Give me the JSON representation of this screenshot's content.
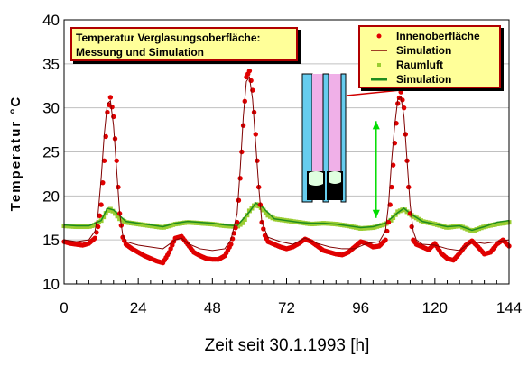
{
  "chart_data": {
    "type": "line",
    "title_lines": [
      "Temperatur Verglasungsoberfläche:",
      "Messung und Simulation"
    ],
    "xlabel": "Zeit seit 30.1.1993  [h]",
    "ylabel": "Temperatur °C",
    "xlim": [
      0,
      144
    ],
    "ylim": [
      10,
      40
    ],
    "xticks": [
      0,
      24,
      48,
      72,
      96,
      120,
      144
    ],
    "yticks": [
      10,
      15,
      20,
      25,
      30,
      35,
      40
    ],
    "grid": true,
    "legend_position": "top-right",
    "legend": [
      {
        "label": "Innenoberfläche",
        "marker": "dot",
        "color": "#e00000"
      },
      {
        "label": "Simulation",
        "marker": "line",
        "color": "#800000"
      },
      {
        "label": "Raumluft",
        "marker": "square",
        "color": "#9acd32"
      },
      {
        "label": "Simulation",
        "marker": "line",
        "color": "#1e8c1e"
      }
    ],
    "series": [
      {
        "name": "Innenoberfläche",
        "color": "#e00000",
        "x": [
          0,
          2,
          4,
          6,
          8,
          10,
          11,
          12,
          13,
          14,
          15,
          16,
          17,
          18,
          19,
          20,
          22,
          24,
          26,
          28,
          30,
          32,
          34,
          36,
          38,
          40,
          42,
          44,
          46,
          48,
          50,
          52,
          54,
          56,
          57,
          58,
          59,
          60,
          61,
          62,
          63,
          64,
          65,
          66,
          68,
          70,
          72,
          74,
          76,
          78,
          80,
          82,
          84,
          86,
          88,
          90,
          92,
          94,
          96,
          98,
          100,
          102,
          104,
          105,
          106,
          107,
          108,
          109,
          110,
          111,
          112,
          113,
          114,
          116,
          118,
          120,
          122,
          124,
          126,
          128,
          130,
          132,
          134,
          136,
          138,
          140,
          142,
          144
        ],
        "y": [
          14.8,
          14.6,
          14.5,
          14.4,
          14.6,
          15.2,
          16.5,
          19,
          24,
          29.5,
          31.2,
          29,
          24,
          18,
          15.3,
          14.5,
          14,
          13.6,
          13.2,
          12.9,
          12.6,
          12.4,
          13.6,
          15.2,
          15.4,
          14.5,
          13.6,
          13.2,
          12.9,
          12.8,
          12.8,
          13.2,
          14.5,
          17,
          22,
          28,
          33.5,
          34.2,
          32,
          27,
          21,
          17,
          15.5,
          14.8,
          14.5,
          14.2,
          14,
          14.2,
          14.6,
          15.1,
          14.8,
          14.3,
          13.8,
          13.6,
          13.4,
          13.3,
          13.6,
          14.2,
          14.8,
          14.6,
          14.2,
          14.3,
          15,
          17,
          21,
          26,
          30.5,
          31.8,
          30,
          24,
          18,
          15,
          14.5,
          14.2,
          13.9,
          14.6,
          13.5,
          12.9,
          12.7,
          13.5,
          14.4,
          14.9,
          14.2,
          13.4,
          13.6,
          14.5,
          15,
          14.3
        ]
      },
      {
        "name": "Simulation",
        "color": "#800000",
        "x": [
          0,
          4,
          8,
          10,
          11,
          12,
          13,
          14,
          15,
          16,
          17,
          18,
          19,
          20,
          24,
          28,
          32,
          34,
          36,
          38,
          40,
          44,
          48,
          52,
          54,
          56,
          57,
          58,
          59,
          60,
          61,
          62,
          63,
          64,
          66,
          70,
          74,
          78,
          82,
          86,
          90,
          94,
          98,
          102,
          104,
          105,
          106,
          107,
          108,
          109,
          110,
          111,
          112,
          113,
          114,
          116,
          120,
          124,
          128,
          132,
          136,
          140,
          144
        ],
        "y": [
          15,
          14.8,
          15,
          16,
          18,
          22,
          27,
          30.5,
          30.8,
          28,
          23,
          18,
          15.5,
          14.8,
          14.4,
          14.2,
          14,
          14.5,
          15,
          15.2,
          14.6,
          14,
          13.8,
          14,
          15,
          18,
          23,
          29,
          33,
          33.5,
          31,
          26,
          21,
          17,
          15.3,
          14.8,
          14.5,
          15.2,
          14.6,
          14.2,
          14,
          14,
          14.6,
          14.8,
          16,
          19,
          24,
          28,
          31,
          31.2,
          29,
          24,
          19,
          16,
          15,
          14.5,
          14.4,
          14,
          13.8,
          14.8,
          14.6,
          14.8,
          15
        ]
      },
      {
        "name": "Raumluft",
        "color": "#9acd32",
        "x": [
          0,
          4,
          8,
          10,
          12,
          14,
          15,
          16,
          18,
          20,
          24,
          28,
          32,
          36,
          40,
          44,
          48,
          52,
          56,
          58,
          60,
          62,
          64,
          66,
          68,
          72,
          76,
          80,
          84,
          88,
          92,
          96,
          100,
          104,
          106,
          108,
          110,
          112,
          116,
          120,
          124,
          128,
          132,
          136,
          140,
          144
        ],
        "y": [
          16.6,
          16.5,
          16.5,
          16.7,
          17.2,
          18.3,
          18.5,
          18.2,
          17.4,
          17,
          16.8,
          16.6,
          16.4,
          16.8,
          17,
          16.9,
          16.8,
          16.6,
          16.5,
          17,
          18.3,
          19.1,
          18.6,
          17.8,
          17.4,
          17.2,
          17,
          16.8,
          16.9,
          16.8,
          16.6,
          16.3,
          16.4,
          16.8,
          17.3,
          18.2,
          18.5,
          17.9,
          17.1,
          16.8,
          16.4,
          16.6,
          16,
          16.5,
          16.8,
          17
        ]
      },
      {
        "name": "Simulation",
        "color": "#1e8c1e",
        "x": [
          0,
          4,
          8,
          12,
          14,
          16,
          20,
          24,
          28,
          32,
          36,
          40,
          44,
          48,
          52,
          56,
          60,
          62,
          64,
          68,
          72,
          76,
          80,
          84,
          88,
          92,
          96,
          100,
          104,
          108,
          110,
          112,
          116,
          120,
          124,
          128,
          132,
          136,
          140,
          144
        ],
        "y": [
          16.7,
          16.6,
          16.6,
          17.2,
          18.6,
          18.4,
          17.1,
          16.9,
          16.7,
          16.5,
          16.9,
          17.1,
          17,
          16.9,
          16.7,
          16.6,
          18.2,
          19.2,
          18.8,
          17.4,
          17.2,
          17,
          16.9,
          16.9,
          16.8,
          16.6,
          16.4,
          16.5,
          16.9,
          18.1,
          18.6,
          18,
          17.1,
          16.8,
          16.5,
          16.6,
          16.1,
          16.5,
          17,
          17.2
        ]
      }
    ],
    "arrow_marker_at": [
      101,
      17.5,
      101,
      28.5
    ]
  }
}
